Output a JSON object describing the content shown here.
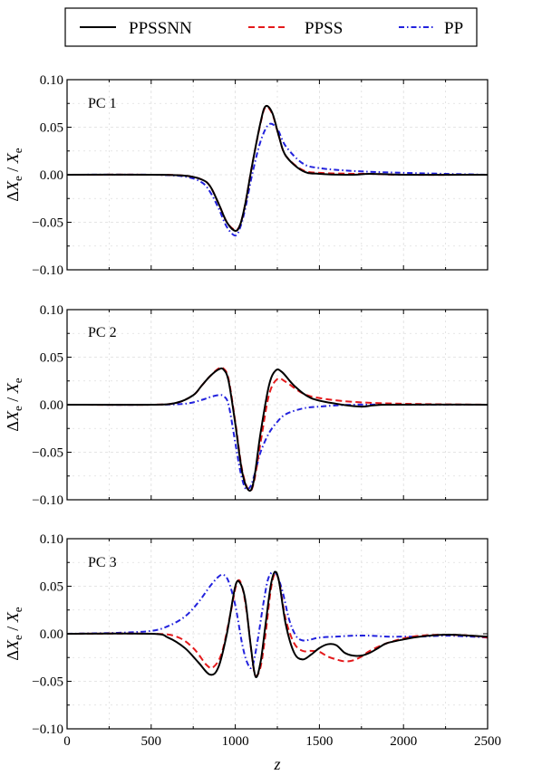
{
  "legend": {
    "placement": "top-center",
    "entries": [
      {
        "label": "PPSSNN",
        "color": "#000000",
        "style": "solid"
      },
      {
        "label": "PPSS",
        "color": "#e41a1c",
        "style": "dashed"
      },
      {
        "label": "PP",
        "color": "#2222dd",
        "style": "dashdot"
      }
    ]
  },
  "chart_data": [
    {
      "type": "line",
      "panel_label": "PC 1",
      "xlabel": "",
      "ylabel": "ΔX_e / X_e",
      "xlim": [
        0,
        2500
      ],
      "ylim": [
        -0.1,
        0.1
      ],
      "yticks": [
        "0.10",
        "0.05",
        "0.00",
        "−0.05",
        "−0.10"
      ],
      "grid": true,
      "series": [
        {
          "name": "PPSSNN",
          "color": "#000000",
          "style": "solid",
          "x": [
            0,
            500,
            700,
            800,
            850,
            900,
            950,
            1000,
            1030,
            1060,
            1100,
            1150,
            1180,
            1220,
            1260,
            1300,
            1400,
            1500,
            1700,
            1800,
            2000,
            2500
          ],
          "y": [
            0,
            0,
            -0.001,
            -0.005,
            -0.012,
            -0.03,
            -0.05,
            -0.059,
            -0.052,
            -0.03,
            0.01,
            0.055,
            0.072,
            0.065,
            0.04,
            0.02,
            0.004,
            0.001,
            0.0,
            0.001,
            0.0,
            0.0
          ]
        },
        {
          "name": "PPSS",
          "color": "#e41a1c",
          "style": "dashed",
          "x": [
            0,
            500,
            700,
            800,
            850,
            900,
            950,
            1000,
            1030,
            1060,
            1100,
            1150,
            1180,
            1220,
            1260,
            1300,
            1400,
            1500,
            1700,
            1800,
            2000,
            2500
          ],
          "y": [
            0,
            0,
            -0.001,
            -0.005,
            -0.012,
            -0.03,
            -0.05,
            -0.058,
            -0.052,
            -0.03,
            0.01,
            0.054,
            0.071,
            0.064,
            0.04,
            0.02,
            0.005,
            0.002,
            0.001,
            0.001,
            0.0,
            0.0
          ]
        },
        {
          "name": "PP",
          "color": "#2222dd",
          "style": "dashdot",
          "x": [
            0,
            500,
            700,
            800,
            850,
            900,
            950,
            1000,
            1030,
            1060,
            1100,
            1150,
            1200,
            1250,
            1300,
            1400,
            1500,
            1700,
            2000,
            2500
          ],
          "y": [
            0,
            0,
            -0.002,
            -0.008,
            -0.018,
            -0.035,
            -0.055,
            -0.064,
            -0.055,
            -0.035,
            0.0,
            0.035,
            0.053,
            0.048,
            0.03,
            0.012,
            0.007,
            0.004,
            0.002,
            0.0
          ]
        }
      ]
    },
    {
      "type": "line",
      "panel_label": "PC 2",
      "xlabel": "",
      "ylabel": "ΔX_e / X_e",
      "xlim": [
        0,
        2500
      ],
      "ylim": [
        -0.1,
        0.1
      ],
      "yticks": [
        "0.10",
        "0.05",
        "0.00",
        "−0.05",
        "−0.10"
      ],
      "grid": true,
      "series": [
        {
          "name": "PPSSNN",
          "color": "#000000",
          "style": "solid",
          "x": [
            0,
            500,
            650,
            750,
            800,
            850,
            900,
            930,
            960,
            1000,
            1040,
            1080,
            1110,
            1150,
            1200,
            1240,
            1280,
            1350,
            1450,
            1600,
            1750,
            1900,
            2500
          ],
          "y": [
            0,
            0,
            0.002,
            0.01,
            0.02,
            0.03,
            0.037,
            0.037,
            0.025,
            -0.02,
            -0.07,
            -0.09,
            -0.08,
            -0.03,
            0.02,
            0.036,
            0.034,
            0.02,
            0.007,
            0.001,
            -0.002,
            0.0,
            0.0
          ]
        },
        {
          "name": "PPSS",
          "color": "#e41a1c",
          "style": "dashed",
          "x": [
            0,
            500,
            650,
            750,
            800,
            850,
            900,
            930,
            960,
            1000,
            1040,
            1080,
            1110,
            1150,
            1200,
            1250,
            1300,
            1400,
            1500,
            1700,
            2000,
            2500
          ],
          "y": [
            0,
            0,
            0.002,
            0.01,
            0.02,
            0.03,
            0.038,
            0.038,
            0.027,
            -0.018,
            -0.068,
            -0.09,
            -0.082,
            -0.04,
            0.01,
            0.027,
            0.024,
            0.012,
            0.007,
            0.003,
            0.001,
            0.0
          ]
        },
        {
          "name": "PP",
          "color": "#2222dd",
          "style": "dashdot",
          "x": [
            0,
            500,
            700,
            800,
            850,
            900,
            930,
            960,
            1000,
            1030,
            1060,
            1090,
            1120,
            1150,
            1200,
            1250,
            1300,
            1400,
            1500,
            1700,
            2000,
            2500
          ],
          "y": [
            0,
            0,
            0.001,
            0.005,
            0.008,
            0.01,
            0.009,
            0.0,
            -0.04,
            -0.07,
            -0.088,
            -0.086,
            -0.07,
            -0.05,
            -0.03,
            -0.018,
            -0.01,
            -0.004,
            -0.002,
            0.0,
            0.0,
            0.0
          ]
        }
      ]
    },
    {
      "type": "line",
      "panel_label": "PC 3",
      "xlabel": "z",
      "ylabel": "ΔX_e / X_e",
      "xlim": [
        0,
        2500
      ],
      "ylim": [
        -0.1,
        0.1
      ],
      "xticks": [
        "0",
        "500",
        "1000",
        "1500",
        "2000",
        "2500"
      ],
      "yticks": [
        "0.10",
        "0.05",
        "0.00",
        "−0.05",
        "−0.10"
      ],
      "grid": true,
      "series": [
        {
          "name": "PPSSNN",
          "color": "#000000",
          "style": "solid",
          "x": [
            0,
            500,
            600,
            700,
            780,
            850,
            900,
            950,
            1000,
            1030,
            1060,
            1090,
            1120,
            1150,
            1180,
            1210,
            1235,
            1260,
            1300,
            1350,
            1400,
            1450,
            1500,
            1550,
            1600,
            1650,
            1700,
            1750,
            1800,
            1850,
            1900,
            2000,
            2100,
            2250,
            2400,
            2500
          ],
          "y": [
            0,
            0,
            -0.004,
            -0.015,
            -0.03,
            -0.043,
            -0.035,
            0.0,
            0.05,
            0.053,
            0.035,
            -0.01,
            -0.045,
            -0.03,
            0.01,
            0.05,
            0.065,
            0.055,
            0.01,
            -0.02,
            -0.027,
            -0.022,
            -0.015,
            -0.011,
            -0.012,
            -0.02,
            -0.023,
            -0.023,
            -0.02,
            -0.015,
            -0.01,
            -0.006,
            -0.003,
            -0.001,
            -0.002,
            -0.003
          ]
        },
        {
          "name": "PPSS",
          "color": "#e41a1c",
          "style": "dashed",
          "x": [
            0,
            500,
            650,
            750,
            830,
            870,
            920,
            970,
            1010,
            1040,
            1070,
            1100,
            1120,
            1150,
            1180,
            1210,
            1235,
            1260,
            1300,
            1350,
            1400,
            1450,
            1500,
            1550,
            1600,
            1650,
            1700,
            1750,
            1800,
            1900,
            2000,
            2100,
            2250,
            2400,
            2500
          ],
          "y": [
            0,
            0,
            -0.003,
            -0.015,
            -0.033,
            -0.035,
            -0.02,
            0.02,
            0.054,
            0.05,
            0.02,
            -0.025,
            -0.044,
            -0.035,
            0.0,
            0.045,
            0.063,
            0.055,
            0.015,
            -0.01,
            -0.018,
            -0.018,
            -0.019,
            -0.024,
            -0.027,
            -0.029,
            -0.028,
            -0.024,
            -0.018,
            -0.01,
            -0.005,
            -0.002,
            -0.001,
            -0.002,
            -0.004
          ]
        },
        {
          "name": "PP",
          "color": "#2222dd",
          "style": "dashdot",
          "x": [
            0,
            300,
            500,
            600,
            700,
            780,
            850,
            900,
            930,
            960,
            1000,
            1040,
            1070,
            1100,
            1130,
            1170,
            1200,
            1240,
            1280,
            1320,
            1360,
            1400,
            1450,
            1500,
            1600,
            1700,
            1800,
            1900,
            2000,
            2100,
            2250,
            2400,
            2500
          ],
          "y": [
            0,
            0.001,
            0.003,
            0.008,
            0.018,
            0.033,
            0.05,
            0.06,
            0.062,
            0.055,
            0.03,
            -0.01,
            -0.03,
            -0.035,
            -0.01,
            0.035,
            0.06,
            0.064,
            0.045,
            0.015,
            -0.002,
            -0.007,
            -0.006,
            -0.004,
            -0.003,
            -0.002,
            -0.002,
            -0.003,
            -0.003,
            -0.003,
            -0.002,
            -0.003,
            -0.004
          ]
        }
      ]
    }
  ]
}
